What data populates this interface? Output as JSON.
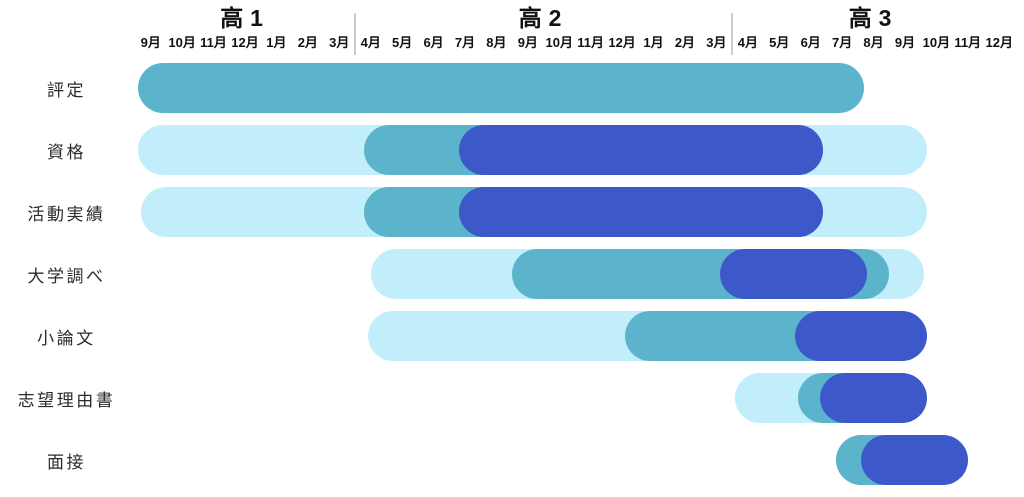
{
  "chart_data": {
    "type": "gantt",
    "description": "University-entrance preparation schedule timeline by high-school year",
    "x_unit": "month column index, 0 = 高1 9月 … 28 = end of 高3 12月",
    "total_months": 28,
    "terms": [
      {
        "label": "高1",
        "months": [
          "9月",
          "10月",
          "11月",
          "12月",
          "1月",
          "2月",
          "3月"
        ]
      },
      {
        "label": "高2",
        "months": [
          "4月",
          "5月",
          "6月",
          "7月",
          "8月",
          "9月",
          "10月",
          "11月",
          "12月",
          "1月",
          "2月",
          "3月"
        ]
      },
      {
        "label": "高3",
        "months": [
          "4月",
          "5月",
          "6月",
          "7月",
          "8月",
          "9月",
          "10月",
          "11月",
          "12月"
        ]
      }
    ],
    "rows": [
      {
        "label": "評定",
        "segments": [
          {
            "level": "active",
            "start": 0.1,
            "end": 23.2
          }
        ]
      },
      {
        "label": "資格",
        "segments": [
          {
            "level": "light",
            "start": 0.1,
            "end": 25.2
          },
          {
            "level": "active",
            "start": 7.3,
            "end": 21.9
          },
          {
            "level": "peak",
            "start": 10.3,
            "end": 21.9
          }
        ]
      },
      {
        "label": "活動実績",
        "segments": [
          {
            "level": "light",
            "start": 0.2,
            "end": 25.2
          },
          {
            "level": "active",
            "start": 7.3,
            "end": 21.9
          },
          {
            "level": "peak",
            "start": 10.3,
            "end": 21.9
          }
        ]
      },
      {
        "label": "大学調べ",
        "segments": [
          {
            "level": "light",
            "start": 7.5,
            "end": 25.1
          },
          {
            "level": "active",
            "start": 12.0,
            "end": 24.0
          },
          {
            "level": "peak",
            "start": 18.6,
            "end": 23.3
          }
        ]
      },
      {
        "label": "小論文",
        "segments": [
          {
            "level": "light",
            "start": 7.4,
            "end": 25.2
          },
          {
            "level": "active",
            "start": 15.6,
            "end": 24.8
          },
          {
            "level": "peak",
            "start": 21.0,
            "end": 25.2
          }
        ]
      },
      {
        "label": "志望理由書",
        "segments": [
          {
            "level": "light",
            "start": 19.1,
            "end": 24.0
          },
          {
            "level": "active",
            "start": 21.1,
            "end": 24.6
          },
          {
            "level": "peak",
            "start": 21.8,
            "end": 25.2
          }
        ]
      },
      {
        "label": "面接",
        "segments": [
          {
            "level": "active",
            "start": 22.3,
            "end": 25.5
          },
          {
            "level": "peak",
            "start": 23.1,
            "end": 26.5
          }
        ]
      }
    ],
    "colors": {
      "light": "#c2eefb",
      "active": "#5cb4cc",
      "peak": "#3d59c9",
      "divider": "#cccccc",
      "header_text": "#111111",
      "row_label_text": "#2b2b2b"
    },
    "legend": "none",
    "grid": "off"
  }
}
